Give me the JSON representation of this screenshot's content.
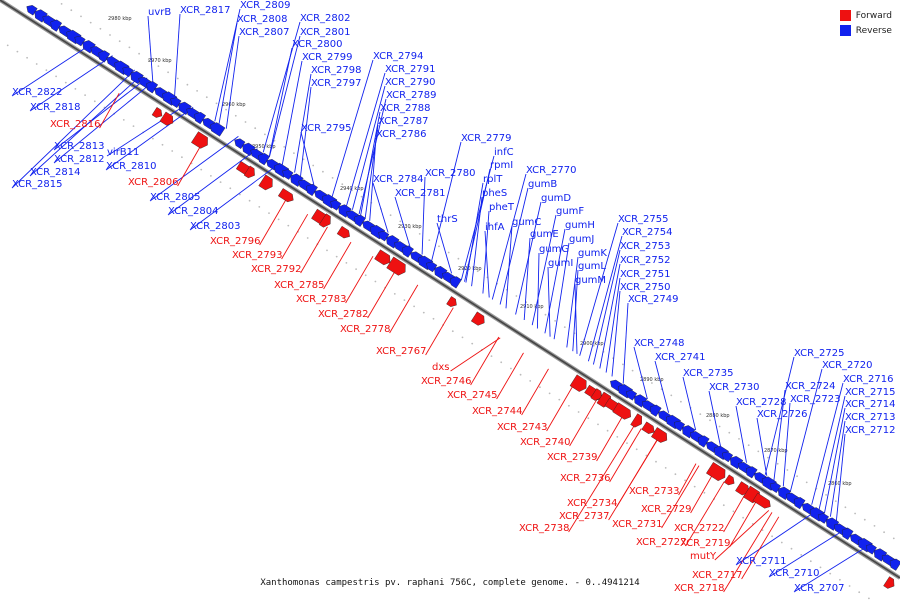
{
  "legend": {
    "forward": {
      "label": "Forward",
      "color": "#ee1111"
    },
    "reverse": {
      "label": "Reverse",
      "color": "#1122ee"
    }
  },
  "caption": "Xanthomonas campestris pv. raphani 756C, complete genome. - 0..4941214",
  "ticks": [
    "2980 kbp",
    "2970 kbp",
    "2960 kbp",
    "2950 kbp",
    "2940 kbp",
    "2930 kbp",
    "2920 kbp",
    "2910 kbp",
    "2900 kbp",
    "2890 kbp",
    "2880 kbp",
    "2870 kbp",
    "2860 kbp"
  ],
  "reverse_labels": [
    "uvrB",
    "XCR_2817",
    "XCR_2809",
    "XCR_2808",
    "XCR_2807",
    "XCR_2802",
    "XCR_2801",
    "XCR_2800",
    "XCR_2799",
    "XCR_2798",
    "XCR_2797",
    "XCR_2794",
    "XCR_2791",
    "XCR_2790",
    "XCR_2789",
    "XCR_2788",
    "XCR_2787",
    "XCR_2786",
    "XCR_2795",
    "XCR_2822",
    "XCR_2818",
    "XCR_2813",
    "XCR_2812",
    "virB11",
    "XCR_2814",
    "XCR_2810",
    "XCR_2815",
    "XCR_2805",
    "XCR_2804",
    "XCR_2803",
    "XCR_2784",
    "XCR_2781",
    "XCR_2780",
    "XCR_2779",
    "infC",
    "rpmI",
    "rplT",
    "pheS",
    "pheT",
    "thrS",
    "ihfA",
    "XCR_2770",
    "gumB",
    "gumD",
    "gumF",
    "gumC",
    "gumH",
    "gumE",
    "gumJ",
    "gumG",
    "gumK",
    "gumI",
    "gumL",
    "gumM",
    "XCR_2755",
    "XCR_2754",
    "XCR_2753",
    "XCR_2752",
    "XCR_2751",
    "XCR_2750",
    "XCR_2749",
    "XCR_2748",
    "XCR_2741",
    "XCR_2735",
    "XCR_2730",
    "XCR_2728",
    "XCR_2726",
    "XCR_2725",
    "XCR_2720",
    "XCR_2724",
    "XCR_2723",
    "XCR_2716",
    "XCR_2715",
    "XCR_2714",
    "XCR_2713",
    "XCR_2712",
    "XCR_2711",
    "XCR_2710",
    "XCR_2707"
  ],
  "forward_labels": [
    "XCR_2816",
    "XCR_2806",
    "XCR_2796",
    "XCR_2793",
    "XCR_2792",
    "XCR_2785",
    "XCR_2783",
    "XCR_2782",
    "XCR_2778",
    "XCR_2767",
    "dxs",
    "XCR_2746",
    "XCR_2745",
    "XCR_2744",
    "XCR_2743",
    "XCR_2740",
    "XCR_2739",
    "XCR_2736",
    "XCR_2734",
    "XCR_2737",
    "XCR_2738",
    "XCR_2733",
    "XCR_2731",
    "XCR_2729",
    "XCR_2727",
    "XCR_2722",
    "XCR_2719",
    "mutY",
    "XCR_2717",
    "XCR_2718"
  ]
}
